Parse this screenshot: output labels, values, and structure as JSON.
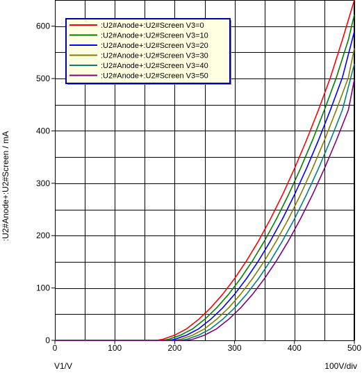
{
  "chart_data": {
    "type": "line",
    "xlabel": "V1/V",
    "x_scale_label": "100V/div",
    "ylabel": ":U2#Anode+:U2#Screen / mA",
    "xlim": [
      0,
      500
    ],
    "ylim": [
      0,
      650
    ],
    "x_ticks": [
      0,
      100,
      200,
      300,
      400,
      500
    ],
    "y_ticks": [
      0,
      100,
      200,
      300,
      400,
      500,
      600
    ],
    "grid": true,
    "legend_position": "top-left",
    "series": [
      {
        "name": ":U2#Anode+:U2#Screen V3=0",
        "color": "#ff0000",
        "x": [
          0,
          150,
          170,
          180,
          200,
          220,
          240,
          260,
          280,
          300,
          320,
          340,
          360,
          380,
          400,
          420,
          440,
          460,
          480,
          500
        ],
        "y": [
          0,
          0,
          0,
          2,
          10,
          22,
          40,
          62,
          88,
          118,
          152,
          190,
          232,
          278,
          328,
          382,
          440,
          502,
          574,
          655
        ]
      },
      {
        "name": ":U2#Anode+:U2#Screen V3=10",
        "color": "#008000",
        "x": [
          0,
          160,
          180,
          190,
          210,
          230,
          250,
          270,
          290,
          310,
          330,
          350,
          370,
          390,
          410,
          430,
          450,
          470,
          490,
          500
        ],
        "y": [
          0,
          0,
          0,
          2,
          10,
          22,
          40,
          62,
          88,
          118,
          152,
          190,
          232,
          278,
          328,
          382,
          440,
          502,
          574,
          622
        ]
      },
      {
        "name": ":U2#Anode+:U2#Screen V3=20",
        "color": "#0000ff",
        "x": [
          0,
          170,
          190,
          200,
          220,
          240,
          260,
          280,
          300,
          320,
          340,
          360,
          380,
          400,
          420,
          440,
          460,
          480,
          500
        ],
        "y": [
          0,
          0,
          0,
          2,
          10,
          22,
          40,
          62,
          88,
          118,
          152,
          190,
          232,
          278,
          328,
          382,
          440,
          502,
          590
        ]
      },
      {
        "name": ":U2#Anode+:U2#Screen V3=30",
        "color": "#808000",
        "x": [
          0,
          180,
          200,
          210,
          230,
          250,
          270,
          290,
          310,
          330,
          350,
          370,
          390,
          410,
          430,
          450,
          470,
          490,
          500
        ],
        "y": [
          0,
          0,
          0,
          2,
          10,
          22,
          40,
          62,
          88,
          118,
          152,
          190,
          232,
          278,
          328,
          382,
          440,
          502,
          558
        ]
      },
      {
        "name": ":U2#Anode+:U2#Screen V3=40",
        "color": "#008080",
        "x": [
          0,
          190,
          210,
          220,
          240,
          260,
          280,
          300,
          320,
          340,
          360,
          380,
          400,
          420,
          440,
          460,
          480,
          500
        ],
        "y": [
          0,
          0,
          0,
          2,
          10,
          22,
          40,
          62,
          88,
          118,
          152,
          190,
          232,
          278,
          328,
          382,
          440,
          528
        ]
      },
      {
        "name": ":U2#Anode+:U2#Screen V3=50",
        "color": "#800080",
        "x": [
          0,
          200,
          220,
          230,
          250,
          270,
          290,
          310,
          330,
          350,
          370,
          390,
          410,
          430,
          450,
          470,
          490,
          500
        ],
        "y": [
          0,
          0,
          0,
          2,
          10,
          22,
          40,
          62,
          88,
          118,
          152,
          190,
          232,
          278,
          328,
          382,
          440,
          498
        ]
      }
    ]
  },
  "colors": {
    "grid": "#000000",
    "legend_bg": "#ffffe1",
    "legend_border": "#0000a0",
    "background": "#ffffff"
  }
}
